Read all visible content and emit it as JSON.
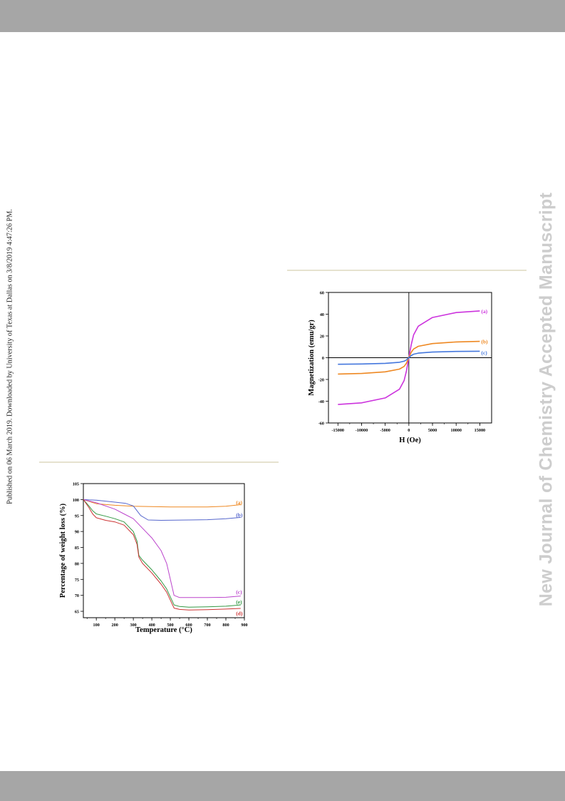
{
  "side_left_text": "Published on 06 March 2019. Downloaded by University of Texas at Dallas on 3/8/2019 4:47:26 PM.",
  "side_right_text": "New Journal of Chemistry Accepted Manuscript",
  "charts": {
    "magnetization": {
      "type": "line",
      "xlabel": "H (Oe)",
      "ylabel": "Magnetization (emu/gr)",
      "xlim": [
        -17000,
        17500
      ],
      "ylim": [
        -60,
        60
      ],
      "xticks": [
        "-15000",
        "-10000",
        "-5000",
        "0",
        "5000",
        "10000",
        "15000"
      ],
      "yticks": [
        "60",
        "40",
        "20",
        "0",
        "-20",
        "-40",
        "-60"
      ],
      "series": [
        {
          "name": "(a)",
          "color": "#cc33dd",
          "x": [
            -15000,
            -10000,
            -5000,
            -2000,
            -1000,
            -500,
            0,
            500,
            1000,
            2000,
            5000,
            10000,
            15000
          ],
          "y": [
            -43,
            -41.5,
            -37,
            -29,
            -21,
            -12,
            0,
            12,
            21,
            29,
            37,
            41.5,
            43
          ]
        },
        {
          "name": "(b)",
          "color": "#ee8822",
          "x": [
            -15000,
            -10000,
            -5000,
            -2000,
            -1000,
            -500,
            0,
            500,
            1000,
            2000,
            5000,
            10000,
            15000
          ],
          "y": [
            -15,
            -14.5,
            -13,
            -10.5,
            -8,
            -5,
            0,
            5,
            8,
            10.5,
            13,
            14.5,
            15
          ]
        },
        {
          "name": "(c)",
          "color": "#4477dd",
          "x": [
            -15000,
            -10000,
            -5000,
            -2000,
            -1000,
            -500,
            0,
            500,
            1000,
            2000,
            5000,
            10000,
            15000
          ],
          "y": [
            -6,
            -5.8,
            -5.2,
            -4.2,
            -3.2,
            -2,
            0,
            2,
            3.2,
            4.2,
            5.2,
            5.8,
            6
          ]
        }
      ],
      "labels": [
        {
          "text": "(a)",
          "color": "#cc33dd",
          "x": 15300,
          "y": 43
        },
        {
          "text": "(b)",
          "color": "#ee8822",
          "x": 15300,
          "y": 15
        },
        {
          "text": "(c)",
          "color": "#4477dd",
          "x": 15300,
          "y": 5
        }
      ]
    },
    "tga": {
      "type": "line",
      "xlabel": "Temperature (°C)",
      "ylabel": "Percentage of weight loss (%)",
      "xlim": [
        30,
        900
      ],
      "ylim": [
        63,
        105
      ],
      "xticks": [
        "100",
        "200",
        "300",
        "400",
        "500",
        "600",
        "700",
        "800",
        "900"
      ],
      "yticks": [
        "105",
        "100",
        "95",
        "90",
        "85",
        "80",
        "75",
        "70",
        "65"
      ],
      "series": [
        {
          "name": "(a)",
          "color": "#ee8822",
          "x": [
            30,
            100,
            200,
            300,
            400,
            500,
            600,
            700,
            800,
            880
          ],
          "y": [
            100,
            98.7,
            98.2,
            97.9,
            97.8,
            97.7,
            97.7,
            97.7,
            97.9,
            98.4
          ]
        },
        {
          "name": "(b)",
          "color": "#5566cc",
          "x": [
            30,
            100,
            200,
            260,
            300,
            340,
            380,
            450,
            600,
            700,
            800,
            880
          ],
          "y": [
            100,
            99.8,
            99.2,
            98.8,
            98,
            95,
            93.6,
            93.5,
            93.6,
            93.7,
            94,
            94.4
          ]
        },
        {
          "name": "(c)",
          "color": "#bb44cc",
          "x": [
            30,
            100,
            200,
            250,
            300,
            350,
            400,
            450,
            480,
            500,
            520,
            550,
            600,
            700,
            800,
            880
          ],
          "y": [
            100,
            99,
            97,
            95.5,
            94,
            91,
            88,
            84,
            80,
            75,
            70,
            69.3,
            69.3,
            69.3,
            69.4,
            69.8
          ]
        },
        {
          "name": "(e)",
          "color": "#339944",
          "x": [
            30,
            60,
            80,
            100,
            150,
            200,
            250,
            300,
            320,
            330,
            350,
            400,
            450,
            480,
            500,
            520,
            550,
            600,
            700,
            800,
            880
          ],
          "y": [
            100,
            98,
            96.5,
            95.5,
            94.8,
            94,
            93,
            90,
            87,
            82.5,
            81,
            78,
            74.5,
            72,
            69.5,
            67,
            66.5,
            66.3,
            66.4,
            66.6,
            67
          ]
        },
        {
          "name": "(d)",
          "color": "#cc3333",
          "x": [
            30,
            60,
            80,
            100,
            150,
            200,
            250,
            300,
            320,
            330,
            350,
            400,
            450,
            480,
            500,
            520,
            550,
            600,
            700,
            800,
            880
          ],
          "y": [
            100,
            97.5,
            95.5,
            94.3,
            93.5,
            93,
            92,
            89,
            86,
            82,
            80,
            77,
            73.5,
            71,
            68.5,
            66,
            65.6,
            65.4,
            65.5,
            65.7,
            65.9
          ]
        }
      ],
      "labels": [
        {
          "text": "(a)",
          "color": "#ee8822",
          "x": 855,
          "y": 99.2
        },
        {
          "text": "(b)",
          "color": "#5566cc",
          "x": 855,
          "y": 95.3
        },
        {
          "text": "(c)",
          "color": "#bb44cc",
          "x": 855,
          "y": 71.2
        },
        {
          "text": "(e)",
          "color": "#339944",
          "x": 855,
          "y": 68
        },
        {
          "text": "(d)",
          "color": "#cc3333",
          "x": 855,
          "y": 64.4
        }
      ]
    }
  }
}
